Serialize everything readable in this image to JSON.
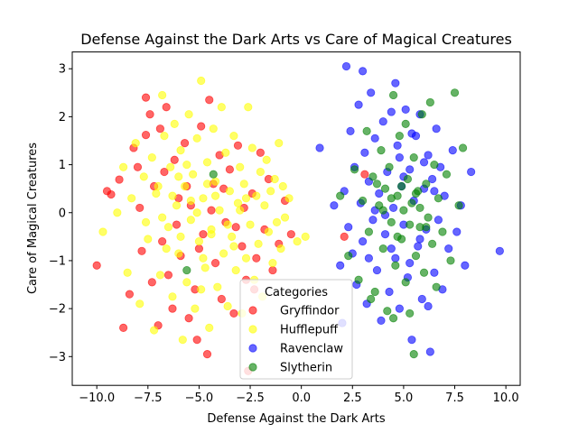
{
  "chart_data": {
    "type": "scatter",
    "title": "Defense Against the Dark Arts vs Care of Magical Creatures",
    "xlabel": "Defense Against the Dark Arts",
    "ylabel": "Care of Magical Creatures",
    "xlim": [
      -11.2,
      10.7
    ],
    "ylim": [
      -3.6,
      3.35
    ],
    "xticks": [
      -10.0,
      -7.5,
      -5.0,
      -2.5,
      0.0,
      2.5,
      5.0,
      7.5,
      10.0
    ],
    "xtick_labels": [
      "−10.0",
      "−7.5",
      "−5.0",
      "−2.5",
      "0.0",
      "2.5",
      "5.0",
      "7.5",
      "10.0"
    ],
    "yticks": [
      -3,
      -2,
      -1,
      0,
      1,
      2,
      3
    ],
    "ytick_labels": [
      "−3",
      "−2",
      "−1",
      "0",
      "1",
      "2",
      "3"
    ],
    "grid": false,
    "legend_title": "Categories",
    "legend_position": "bottom-center",
    "marker_alpha": 0.6,
    "series": [
      {
        "name": "Gryffindor",
        "color": "#ff0000",
        "points": [
          [
            -10.0,
            -1.1
          ],
          [
            -9.5,
            0.45
          ],
          [
            -9.3,
            0.38
          ],
          [
            -8.9,
            0.69
          ],
          [
            -8.7,
            -2.4
          ],
          [
            -8.4,
            -1.7
          ],
          [
            -8.2,
            1.35
          ],
          [
            -8.0,
            0.95
          ],
          [
            -7.8,
            -0.8
          ],
          [
            -7.6,
            2.4
          ],
          [
            -7.6,
            1.62
          ],
          [
            -7.4,
            2.05
          ],
          [
            -7.2,
            0.55
          ],
          [
            -7.0,
            -2.35
          ],
          [
            -6.9,
            1.75
          ],
          [
            -6.8,
            -0.6
          ],
          [
            -6.6,
            2.2
          ],
          [
            -6.5,
            -1.3
          ],
          [
            -6.3,
            -2.0
          ],
          [
            -6.2,
            1.1
          ],
          [
            -6.0,
            0.3
          ],
          [
            -5.9,
            -0.9
          ],
          [
            -5.7,
            1.45
          ],
          [
            -5.5,
            -2.2
          ],
          [
            -5.4,
            0.15
          ],
          [
            -5.2,
            -1.6
          ],
          [
            -5.1,
            -2.65
          ],
          [
            -4.9,
            1.8
          ],
          [
            -4.8,
            -0.45
          ],
          [
            -4.6,
            -2.95
          ],
          [
            -4.5,
            2.35
          ],
          [
            -4.3,
            0.6
          ],
          [
            -4.2,
            -1.05
          ],
          [
            -4.0,
            1.2
          ],
          [
            -3.9,
            -1.8
          ],
          [
            -3.7,
            -0.2
          ],
          [
            -3.5,
            0.9
          ],
          [
            -3.3,
            -2.1
          ],
          [
            -3.1,
            1.4
          ],
          [
            -2.9,
            -0.7
          ],
          [
            -2.7,
            -1.4
          ],
          [
            -2.6,
            -3.3
          ],
          [
            -2.4,
            0.4
          ],
          [
            -2.2,
            -0.95
          ],
          [
            -2.0,
            1.25
          ],
          [
            -1.8,
            -0.35
          ],
          [
            -1.6,
            0.7
          ],
          [
            -1.4,
            -1.2
          ],
          [
            -1.1,
            -0.65
          ],
          [
            -0.8,
            0.25
          ],
          [
            -0.5,
            -0.45
          ],
          [
            -7.9,
            0.1
          ],
          [
            -7.3,
            -1.45
          ],
          [
            -6.7,
            0.85
          ],
          [
            -6.1,
            -0.25
          ],
          [
            -5.6,
            0.55
          ],
          [
            -5.0,
            -0.75
          ],
          [
            -4.4,
            0.05
          ],
          [
            -3.8,
            0.5
          ],
          [
            -3.2,
            -0.3
          ],
          [
            -2.8,
            0.1
          ],
          [
            -2.3,
            -1.6
          ],
          [
            2.1,
            -0.5
          ],
          [
            3.1,
            0.8
          ]
        ]
      },
      {
        "name": "Hufflepuff",
        "color": "#ffff00",
        "points": [
          [
            -9.7,
            -0.4
          ],
          [
            -9.0,
            0.0
          ],
          [
            -8.7,
            0.95
          ],
          [
            -8.5,
            -1.25
          ],
          [
            -8.3,
            0.3
          ],
          [
            -8.1,
            1.45
          ],
          [
            -7.9,
            -1.9
          ],
          [
            -7.7,
            0.75
          ],
          [
            -7.5,
            -0.55
          ],
          [
            -7.3,
            1.15
          ],
          [
            -7.2,
            -2.45
          ],
          [
            -7.1,
            0.4
          ],
          [
            -6.9,
            -1.3
          ],
          [
            -6.8,
            2.45
          ],
          [
            -6.7,
            1.6
          ],
          [
            -6.5,
            -0.3
          ],
          [
            -6.4,
            0.95
          ],
          [
            -6.3,
            -1.75
          ],
          [
            -6.2,
            1.85
          ],
          [
            -6.1,
            0.15
          ],
          [
            -6.0,
            -0.85
          ],
          [
            -5.9,
            1.3
          ],
          [
            -5.8,
            -2.65
          ],
          [
            -5.7,
            0.55
          ],
          [
            -5.6,
            -1.45
          ],
          [
            -5.5,
            2.05
          ],
          [
            -5.4,
            -0.15
          ],
          [
            -5.3,
            0.8
          ],
          [
            -5.2,
            -2.0
          ],
          [
            -5.1,
            1.55
          ],
          [
            -5.0,
            -0.6
          ],
          [
            -4.9,
            2.75
          ],
          [
            -4.8,
            0.3
          ],
          [
            -4.7,
            -1.15
          ],
          [
            -4.6,
            1.05
          ],
          [
            -4.5,
            -2.4
          ],
          [
            -4.4,
            -0.35
          ],
          [
            -4.3,
            1.75
          ],
          [
            -4.2,
            0.65
          ],
          [
            -4.1,
            -1.55
          ],
          [
            -4.0,
            0.05
          ],
          [
            -3.9,
            2.2
          ],
          [
            -3.8,
            -0.85
          ],
          [
            -3.7,
            1.25
          ],
          [
            -3.6,
            -1.95
          ],
          [
            -3.5,
            0.45
          ],
          [
            -3.4,
            -0.5
          ],
          [
            -3.3,
            1.6
          ],
          [
            -3.2,
            -1.2
          ],
          [
            -3.1,
            0.2
          ],
          [
            -3.0,
            0.95
          ],
          [
            -2.9,
            -2.1
          ],
          [
            -2.8,
            0.6
          ],
          [
            -2.7,
            -0.95
          ],
          [
            -2.6,
            2.2
          ],
          [
            -2.5,
            -0.25
          ],
          [
            -2.4,
            1.35
          ],
          [
            -2.3,
            -1.4
          ],
          [
            -2.2,
            0.35
          ],
          [
            -2.1,
            -0.65
          ],
          [
            -2.0,
            0.85
          ],
          [
            -1.9,
            -1.75
          ],
          [
            -1.8,
            0.15
          ],
          [
            -1.7,
            1.1
          ],
          [
            -1.6,
            -0.4
          ],
          [
            -1.5,
            0.45
          ],
          [
            -1.4,
            -1.05
          ],
          [
            -1.3,
            0.7
          ],
          [
            -1.2,
            -0.2
          ],
          [
            -1.1,
            1.45
          ],
          [
            -1.0,
            -0.75
          ],
          [
            -0.9,
            0.55
          ],
          [
            -0.8,
            -0.1
          ],
          [
            -0.6,
            0.3
          ],
          [
            -0.2,
            -0.6
          ],
          [
            0.2,
            -0.5
          ],
          [
            -7.6,
            -0.2
          ],
          [
            -7.0,
            0.55
          ],
          [
            -6.6,
            -0.75
          ],
          [
            -6.0,
            0.75
          ],
          [
            -5.4,
            0.25
          ],
          [
            -4.8,
            -0.95
          ],
          [
            -4.2,
            0.35
          ],
          [
            -3.6,
            -0.25
          ],
          [
            -3.0,
            0.05
          ],
          [
            -5.9,
            -0.5
          ],
          [
            -4.6,
            0.6
          ],
          [
            -3.3,
            -0.7
          ],
          [
            -6.3,
            0.35
          ],
          [
            -5.1,
            0.0
          ],
          [
            -4.4,
            -0.45
          ],
          [
            -2.7,
            0.3
          ],
          [
            -6.8,
            -0.1
          ],
          [
            -5.6,
            1.0
          ],
          [
            -4.9,
            -1.6
          ]
        ]
      },
      {
        "name": "Ravenclaw",
        "color": "#0000ff",
        "points": [
          [
            0.9,
            1.35
          ],
          [
            1.6,
            0.15
          ],
          [
            1.9,
            -1.1
          ],
          [
            2.0,
            -2.3
          ],
          [
            2.1,
            0.45
          ],
          [
            2.2,
            3.05
          ],
          [
            2.3,
            -0.3
          ],
          [
            2.4,
            1.7
          ],
          [
            2.5,
            -0.85
          ],
          [
            2.6,
            0.95
          ],
          [
            2.7,
            -1.5
          ],
          [
            2.8,
            2.25
          ],
          [
            2.9,
            0.2
          ],
          [
            3.0,
            -0.6
          ],
          [
            3.1,
            1.25
          ],
          [
            3.2,
            -1.9
          ],
          [
            3.3,
            0.65
          ],
          [
            3.4,
            2.5
          ],
          [
            3.5,
            -0.15
          ],
          [
            3.6,
            1.55
          ],
          [
            3.7,
            -1.2
          ],
          [
            3.8,
            0.4
          ],
          [
            3.9,
            -2.25
          ],
          [
            4.0,
            1.9
          ],
          [
            4.1,
            -0.45
          ],
          [
            4.2,
            0.85
          ],
          [
            4.3,
            -1.65
          ],
          [
            4.4,
            2.1
          ],
          [
            4.5,
            0.1
          ],
          [
            4.6,
            -0.95
          ],
          [
            4.7,
            1.4
          ],
          [
            4.8,
            -2.0
          ],
          [
            4.9,
            0.55
          ],
          [
            5.0,
            -0.25
          ],
          [
            5.1,
            2.15
          ],
          [
            5.2,
            -1.35
          ],
          [
            5.3,
            0.9
          ],
          [
            5.4,
            -2.65
          ],
          [
            5.5,
            0.25
          ],
          [
            5.6,
            1.6
          ],
          [
            5.7,
            -0.7
          ],
          [
            5.8,
            2.05
          ],
          [
            5.9,
            -1.8
          ],
          [
            6.0,
            0.5
          ],
          [
            6.1,
            -0.35
          ],
          [
            6.2,
            1.2
          ],
          [
            6.3,
            -2.9
          ],
          [
            6.4,
            0.7
          ],
          [
            6.5,
            -1.25
          ],
          [
            6.6,
            1.75
          ],
          [
            6.7,
            -0.15
          ],
          [
            6.8,
            0.95
          ],
          [
            6.9,
            -1.6
          ],
          [
            7.0,
            0.35
          ],
          [
            7.2,
            -0.75
          ],
          [
            7.4,
            1.3
          ],
          [
            7.6,
            -0.4
          ],
          [
            7.8,
            0.15
          ],
          [
            8.0,
            -1.1
          ],
          [
            8.3,
            0.85
          ],
          [
            9.7,
            -0.8
          ],
          [
            3.0,
            2.95
          ],
          [
            4.6,
            2.7
          ],
          [
            5.4,
            1.65
          ],
          [
            6.2,
            -1.95
          ],
          [
            4.1,
            -0.05
          ],
          [
            5.0,
            0.75
          ],
          [
            5.8,
            -0.55
          ],
          [
            6.5,
            0.45
          ],
          [
            3.6,
            0.05
          ],
          [
            4.4,
            -0.75
          ],
          [
            5.3,
            -1.05
          ],
          [
            6.0,
            1.05
          ],
          [
            3.3,
            -0.95
          ],
          [
            4.8,
            1.15
          ]
        ]
      },
      {
        "name": "Slytherin",
        "color": "#008000",
        "points": [
          [
            -4.3,
            0.8
          ],
          [
            -5.6,
            -1.2
          ],
          [
            1.9,
            0.35
          ],
          [
            2.3,
            -0.9
          ],
          [
            2.6,
            0.9
          ],
          [
            2.8,
            -1.4
          ],
          [
            3.0,
            0.25
          ],
          [
            3.2,
            1.7
          ],
          [
            3.3,
            -0.4
          ],
          [
            3.5,
            0.75
          ],
          [
            3.6,
            -1.65
          ],
          [
            3.8,
            0.15
          ],
          [
            3.9,
            1.3
          ],
          [
            4.0,
            -0.75
          ],
          [
            4.1,
            0.5
          ],
          [
            4.2,
            -2.05
          ],
          [
            4.3,
            0.95
          ],
          [
            4.4,
            -0.2
          ],
          [
            4.5,
            2.45
          ],
          [
            4.6,
            -1.1
          ],
          [
            4.7,
            0.35
          ],
          [
            4.8,
            1.6
          ],
          [
            4.9,
            -0.55
          ],
          [
            5.0,
            0.05
          ],
          [
            5.1,
            -1.45
          ],
          [
            5.2,
            0.7
          ],
          [
            5.3,
            -2.1
          ],
          [
            5.4,
            0.2
          ],
          [
            5.5,
            1.15
          ],
          [
            5.6,
            -0.9
          ],
          [
            5.7,
            0.45
          ],
          [
            5.8,
            -0.3
          ],
          [
            5.9,
            2.05
          ],
          [
            6.0,
            -1.25
          ],
          [
            6.1,
            0.6
          ],
          [
            6.2,
            -0.1
          ],
          [
            6.3,
            2.3
          ],
          [
            6.4,
            -0.65
          ],
          [
            6.5,
            1.0
          ],
          [
            6.6,
            -1.55
          ],
          [
            6.7,
            0.3
          ],
          [
            6.9,
            -0.4
          ],
          [
            7.1,
            0.8
          ],
          [
            7.3,
            -1.0
          ],
          [
            7.5,
            2.5
          ],
          [
            7.7,
            0.15
          ],
          [
            7.9,
            1.35
          ],
          [
            3.4,
            -1.8
          ],
          [
            4.5,
            -2.2
          ],
          [
            5.1,
            1.85
          ],
          [
            5.5,
            -2.95
          ],
          [
            4.4,
            0.3
          ],
          [
            4.9,
            0.55
          ],
          [
            5.3,
            -0.25
          ],
          [
            5.8,
            0.1
          ],
          [
            4.0,
            0.05
          ],
          [
            4.7,
            -0.5
          ],
          [
            5.6,
            0.4
          ],
          [
            6.1,
            -0.3
          ],
          [
            3.7,
            0.6
          ]
        ]
      }
    ]
  }
}
